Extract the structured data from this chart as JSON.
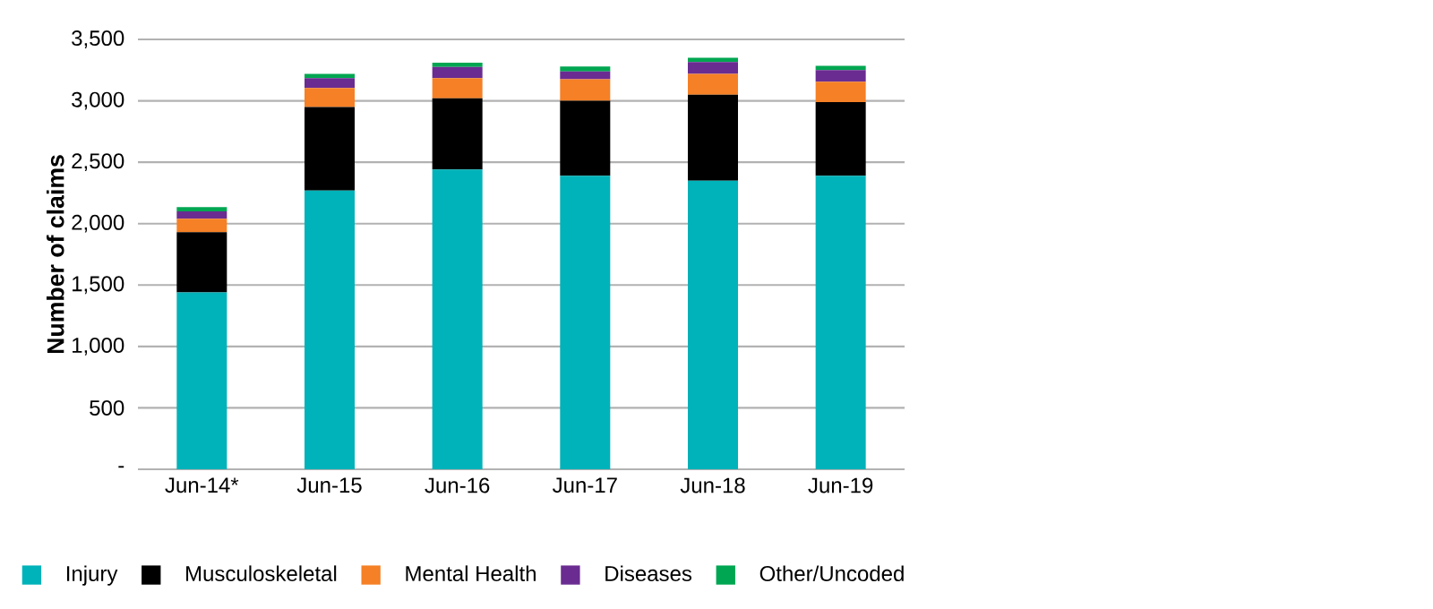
{
  "chart_data": {
    "type": "bar",
    "stacked": true,
    "ylabel": "Number of claims",
    "categories": [
      "Jun-14*",
      "Jun-15",
      "Jun-16",
      "Jun-17",
      "Jun-18",
      "Jun-19"
    ],
    "series": [
      {
        "name": "Injury",
        "color": "#00b2b9",
        "values": [
          1440,
          2270,
          2440,
          2390,
          2350,
          2390
        ]
      },
      {
        "name": "Musculoskeletal",
        "color": "#000000",
        "values": [
          490,
          680,
          580,
          610,
          700,
          600
        ]
      },
      {
        "name": "Mental Health",
        "color": "#f58025",
        "values": [
          110,
          155,
          165,
          175,
          170,
          165
        ]
      },
      {
        "name": "Diseases",
        "color": "#6a2c91",
        "values": [
          60,
          80,
          90,
          65,
          95,
          95
        ]
      },
      {
        "name": "Other/Uncoded",
        "color": "#00a651",
        "values": [
          35,
          35,
          35,
          40,
          35,
          35
        ]
      }
    ],
    "ylim": [
      0,
      3500
    ],
    "yticks": [
      {
        "value": 0,
        "label": "-"
      },
      500,
      {
        "value": 1000,
        "label": "1,000"
      },
      {
        "value": 1500,
        "label": "1,500"
      },
      {
        "value": 2000,
        "label": "2,000"
      },
      {
        "value": 2500,
        "label": "2,500"
      },
      {
        "value": 3000,
        "label": "3,000"
      },
      {
        "value": 3500,
        "label": "3,500"
      }
    ],
    "grid": "y",
    "legend": "bottom"
  }
}
